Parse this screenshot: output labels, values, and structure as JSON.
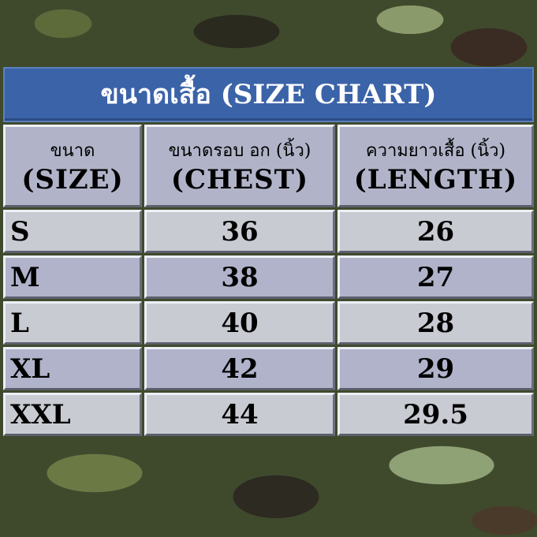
{
  "title": "ขนาดเสื้อ (SIZE CHART)",
  "colors": {
    "title_bg": "#3b63a8",
    "row_light": "#c9cbd3",
    "row_blue": "#b0b3ca"
  },
  "chart_data": {
    "type": "table",
    "title": "ขนาดเสื้อ (SIZE CHART)",
    "columns": [
      {
        "th": "ขนาด",
        "en": "(SIZE)"
      },
      {
        "th": "ขนาดรอบ อก (นิ้ว)",
        "en": "(CHEST)"
      },
      {
        "th": "ความยาวเสื้อ (นิ้ว)",
        "en": "(LENGTH)"
      }
    ],
    "rows": [
      [
        "S",
        "36",
        "26"
      ],
      [
        "M",
        "38",
        "27"
      ],
      [
        "L",
        "40",
        "28"
      ],
      [
        "XL",
        "42",
        "29"
      ],
      [
        "XXL",
        "44",
        "29.5"
      ]
    ]
  }
}
